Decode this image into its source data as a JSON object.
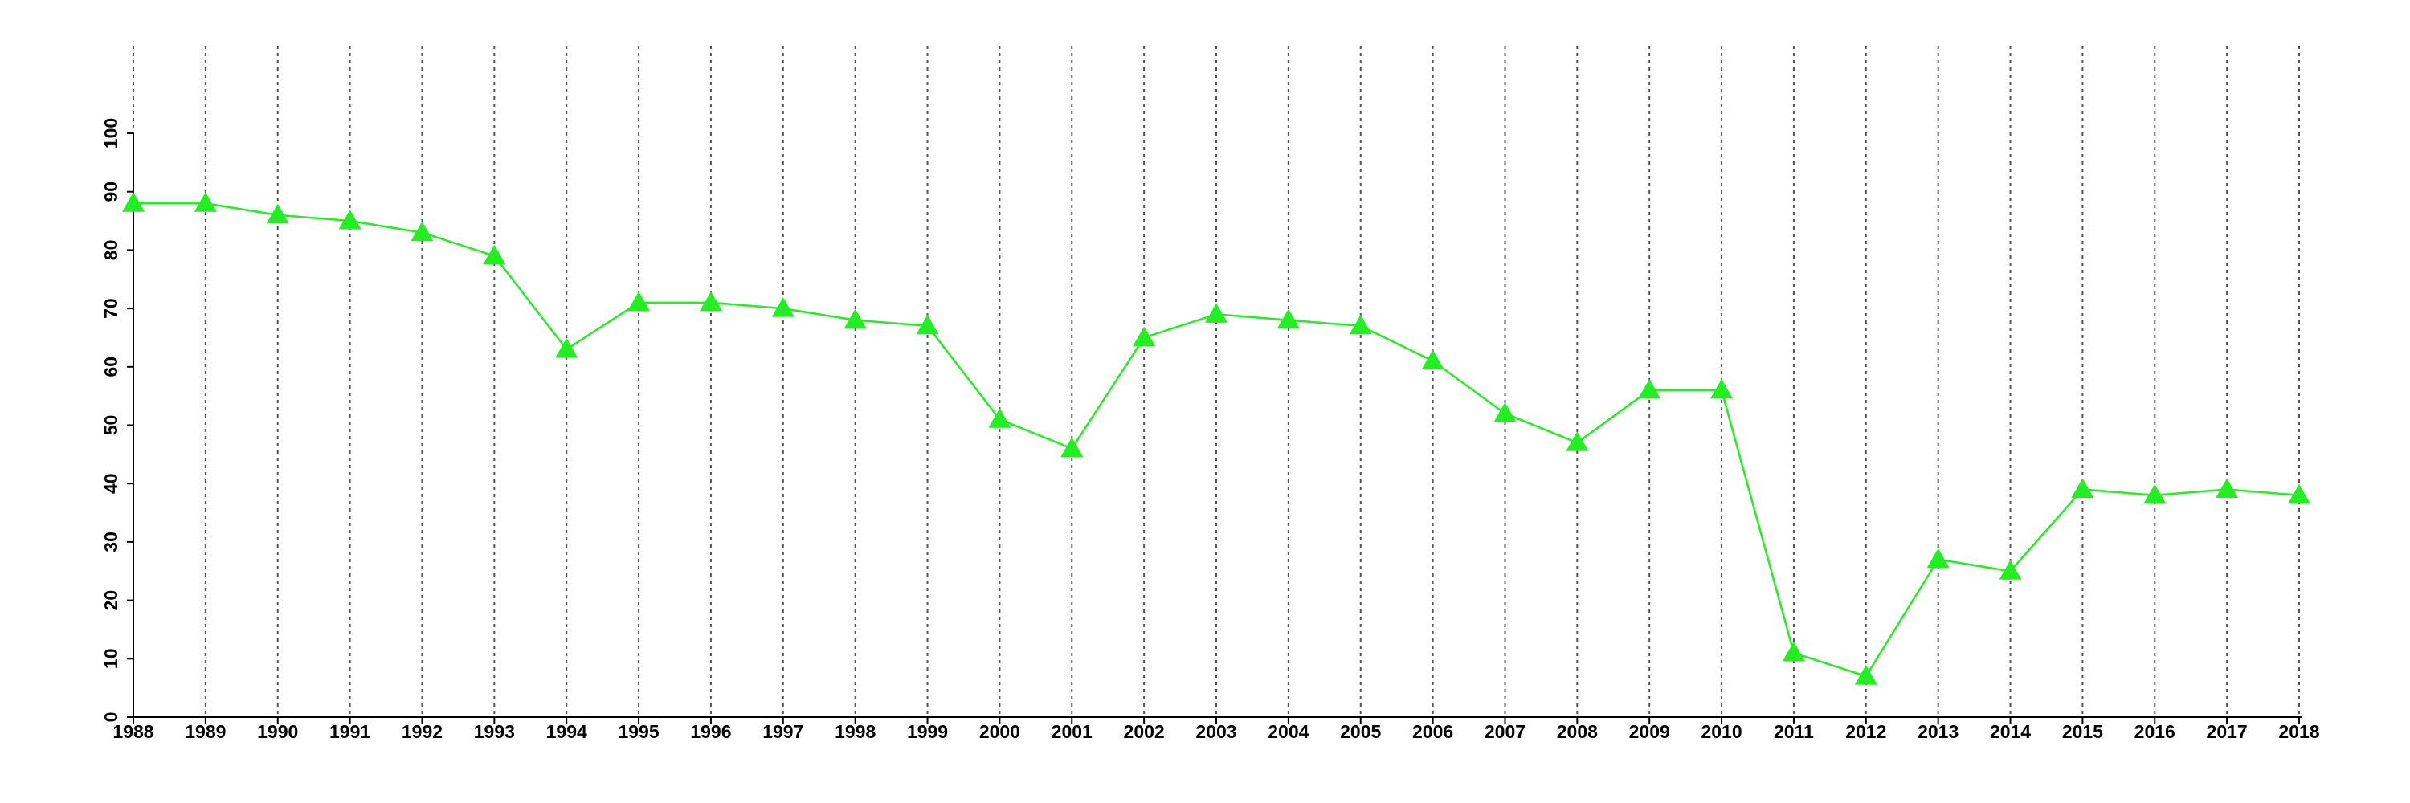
{
  "chart_data": {
    "type": "line",
    "x": [
      1988,
      1989,
      1990,
      1991,
      1992,
      1993,
      1994,
      1995,
      1996,
      1997,
      1998,
      1999,
      2000,
      2001,
      2002,
      2003,
      2004,
      2005,
      2006,
      2007,
      2008,
      2009,
      2010,
      2011,
      2012,
      2013,
      2014,
      2015,
      2016,
      2017,
      2018
    ],
    "series": [
      {
        "color": "#22ee22",
        "values": [
          88,
          88,
          86,
          85,
          83,
          79,
          63,
          71,
          71,
          70,
          68,
          67,
          51,
          46,
          65,
          69,
          68,
          67,
          61,
          52,
          47,
          56,
          56,
          11,
          7,
          27,
          25,
          39,
          38,
          39,
          38
        ]
      }
    ],
    "xlim": [
      1988,
      2018
    ],
    "xticks": [
      1988,
      1989,
      1990,
      1991,
      1992,
      1993,
      1994,
      1995,
      1996,
      1997,
      1998,
      1999,
      2000,
      2001,
      2002,
      2003,
      2004,
      2005,
      2006,
      2007,
      2008,
      2009,
      2010,
      2011,
      2012,
      2013,
      2014,
      2015,
      2016,
      2017,
      2018
    ],
    "ylim": [
      0,
      100
    ],
    "yticks": [
      0,
      10,
      20,
      30,
      40,
      50,
      60,
      70,
      80,
      90,
      100
    ],
    "grid": true
  }
}
